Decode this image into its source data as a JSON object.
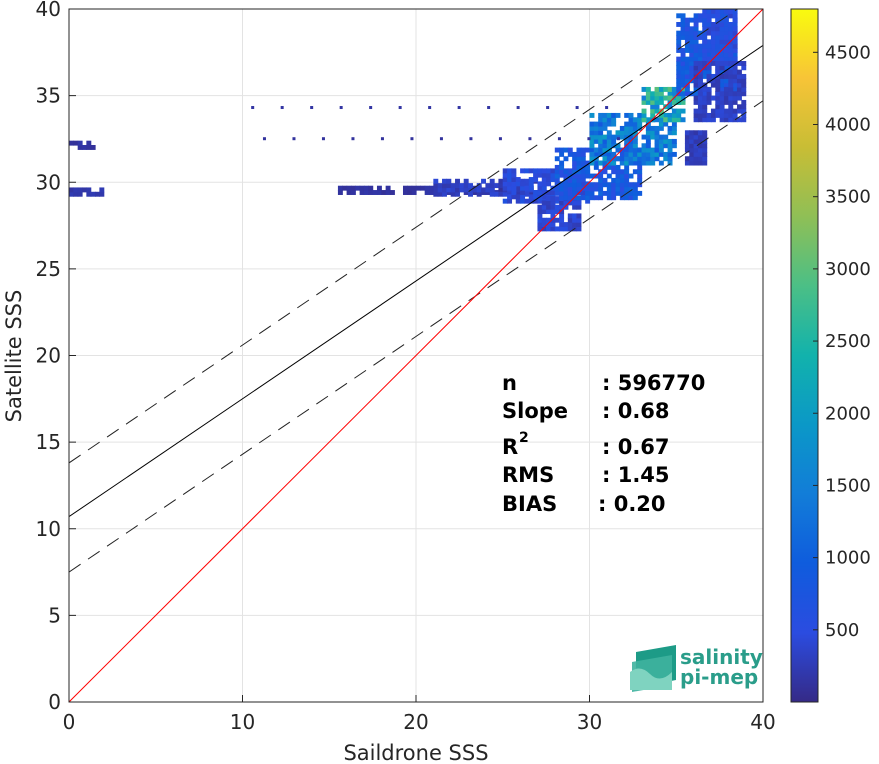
{
  "chart_data": {
    "type": "heatmap",
    "xlabel": "Saildrone SSS",
    "ylabel": "Satellite SSS",
    "xlim": [
      0,
      40
    ],
    "ylim": [
      0,
      40
    ],
    "xticks": [
      "0",
      "10",
      "20",
      "30",
      "40"
    ],
    "yticks": [
      "0",
      "5",
      "10",
      "15",
      "20",
      "25",
      "30",
      "35",
      "40"
    ],
    "grid": true,
    "colorbar": {
      "min": 0,
      "max": 4800,
      "colormap": "parula",
      "ticks": [
        500,
        1000,
        1500,
        2000,
        2500,
        3000,
        3500,
        4000,
        4500
      ],
      "tick_labels": [
        "500",
        "1000",
        "1500",
        "2000",
        "2500",
        "3000",
        "3500",
        "4000",
        "4500"
      ]
    },
    "lines": {
      "identity": {
        "slope": 1,
        "intercept": 0,
        "color": "#ff0000"
      },
      "regression": {
        "slope": 0.68,
        "intercept": 10.7,
        "color": "#000000"
      },
      "upper_bound": {
        "slope": 0.68,
        "intercept": 13.8,
        "style": "dashed"
      },
      "lower_bound": {
        "slope": 0.68,
        "intercept": 7.5,
        "style": "dashed"
      }
    },
    "density_clusters": [
      {
        "x": [
          0,
          2
        ],
        "y": [
          29.2,
          29.6
        ],
        "level": 200
      },
      {
        "x": [
          0,
          1.5
        ],
        "y": [
          31.9,
          32.3
        ],
        "level": 150
      },
      {
        "x": [
          15.5,
          27
        ],
        "y": [
          29.3,
          29.6
        ],
        "level": 150
      },
      {
        "x": [
          21,
          27
        ],
        "y": [
          29.2,
          30.2
        ],
        "level": 350
      },
      {
        "x": [
          25,
          30
        ],
        "y": [
          28.8,
          30.6
        ],
        "level": 550
      },
      {
        "x": [
          27,
          29.5
        ],
        "y": [
          27.2,
          29
        ],
        "level": 450
      },
      {
        "x": [
          28,
          33
        ],
        "y": [
          29,
          32
        ],
        "level": 900
      },
      {
        "x": [
          30,
          35
        ],
        "y": [
          31,
          34
        ],
        "level": 1600
      },
      {
        "x": [
          33,
          35.5
        ],
        "y": [
          33.5,
          35.5
        ],
        "level": 2400
      },
      {
        "x": [
          34.5,
          35.2
        ],
        "y": [
          34.5,
          35.3
        ],
        "level": 2900
      },
      {
        "x": [
          35,
          38.5
        ],
        "y": [
          35,
          39.7
        ],
        "level": 900
      },
      {
        "x": [
          36.5,
          38.5
        ],
        "y": [
          37,
          39.8
        ],
        "level": 600
      },
      {
        "x": [
          35.5,
          36.7
        ],
        "y": [
          31,
          33
        ],
        "level": 300
      },
      {
        "x": [
          36,
          39
        ],
        "y": [
          33.5,
          37
        ],
        "level": 350
      }
    ],
    "outlier_row": {
      "y": 34.4,
      "x_start": 10.5,
      "x_end": 32,
      "step": 1.7
    }
  },
  "stats": {
    "rows": [
      {
        "label": "n",
        "value": ": 596770"
      },
      {
        "label": "Slope",
        "value": ": 0.68"
      },
      {
        "label": "R",
        "sup": "2",
        "value": ": 0.67"
      },
      {
        "label": "RMS",
        "value": ": 1.45"
      },
      {
        "label": "BIAS",
        "value": ": 0.20"
      }
    ]
  },
  "logo": {
    "line1": "salinity",
    "line2": "pi-mep"
  }
}
